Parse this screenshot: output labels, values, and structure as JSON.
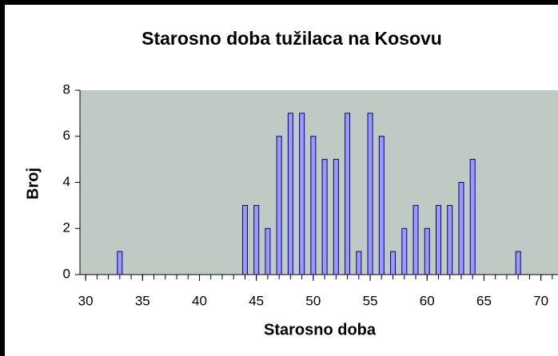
{
  "chart_data": {
    "type": "bar",
    "title": "Starosno doba tužilaca na Kosovu",
    "x_label": "Starosno doba",
    "y_label": "Broj",
    "x": [
      33,
      44,
      45,
      46,
      47,
      48,
      49,
      50,
      51,
      52,
      53,
      54,
      55,
      56,
      57,
      58,
      59,
      60,
      61,
      62,
      63,
      64,
      68
    ],
    "values": [
      1,
      3,
      3,
      2,
      6,
      7,
      7,
      6,
      5,
      5,
      7,
      1,
      7,
      6,
      1,
      2,
      3,
      2,
      3,
      3,
      4,
      5,
      1
    ],
    "color": "#9999ff",
    "plot_background": "#c0cac5",
    "xlim": [
      29.5,
      71.5
    ],
    "xticks": [
      30,
      35,
      40,
      45,
      50,
      55,
      60,
      65,
      70
    ],
    "ylim": [
      0,
      8
    ],
    "yticks": [
      0,
      2,
      4,
      6,
      8
    ],
    "grid": false
  }
}
